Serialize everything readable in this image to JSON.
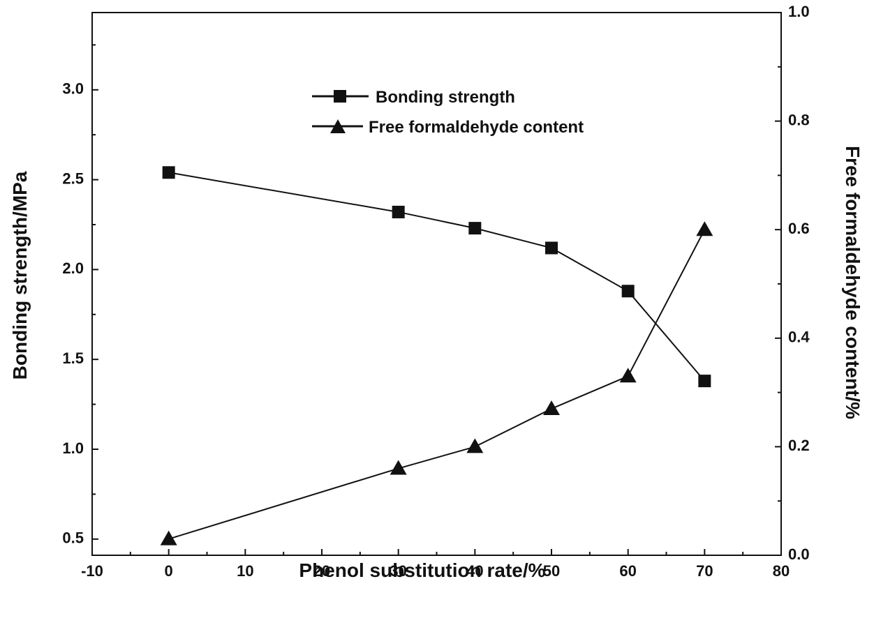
{
  "chart_data": {
    "type": "line",
    "xlabel": "Phenol substitution rate/%",
    "ylabel": "Bonding strength/MPa",
    "y2label": "Free formaldehyde content/%",
    "xlim": [
      -10,
      80
    ],
    "ylim": [
      0.41,
      3.43
    ],
    "y2lim": [
      0.0,
      1.0
    ],
    "x_ticks": [
      -10,
      0,
      10,
      20,
      30,
      40,
      50,
      60,
      70,
      80
    ],
    "y_ticks": [
      0.5,
      1.0,
      1.5,
      2.0,
      2.5,
      3.0
    ],
    "y2_ticks": [
      0.0,
      0.2,
      0.4,
      0.6,
      0.8,
      1.0
    ],
    "x_tick_labels": [
      "-10",
      "0",
      "10",
      "20",
      "30",
      "40",
      "50",
      "60",
      "70",
      "80"
    ],
    "y_tick_labels": [
      "0.5",
      "1.0",
      "1.5",
      "2.0",
      "2.5",
      "3.0"
    ],
    "y2_tick_labels": [
      "0.0",
      "0.2",
      "0.4",
      "0.6",
      "0.8",
      "1.0"
    ],
    "legend_position": "top-center",
    "series": [
      {
        "name": "Bonding strength",
        "axis": "left",
        "marker": "square",
        "x": [
          0,
          30,
          40,
          50,
          60,
          70
        ],
        "values": [
          2.54,
          2.32,
          2.23,
          2.12,
          1.88,
          1.38
        ]
      },
      {
        "name": "Free formaldehyde content",
        "axis": "right",
        "marker": "triangle",
        "x": [
          0,
          30,
          40,
          50,
          60,
          70
        ],
        "values": [
          0.03,
          0.16,
          0.2,
          0.27,
          0.33,
          0.6
        ]
      }
    ]
  }
}
